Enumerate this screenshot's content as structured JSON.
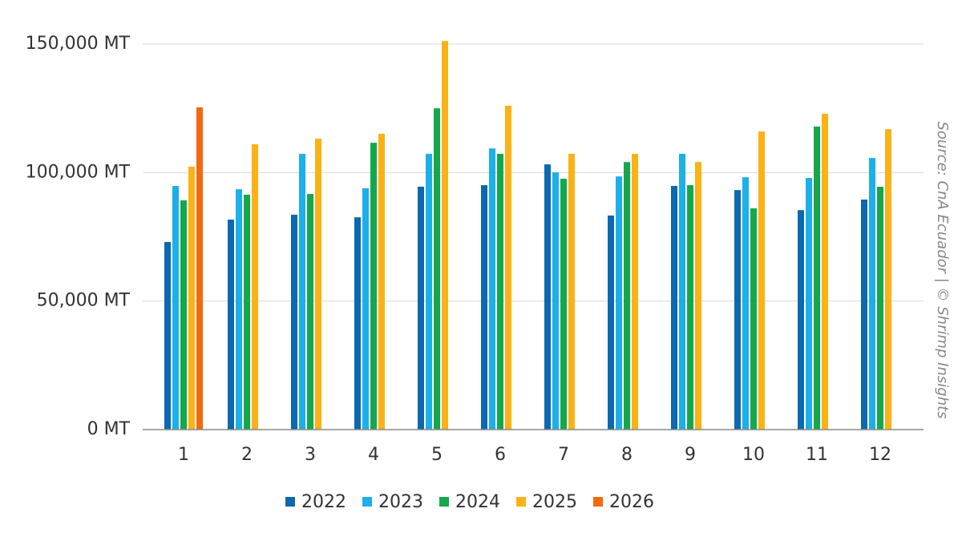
{
  "chart_data": {
    "type": "bar",
    "source": "Source: CnA Ecuador | © Shrimp Insights",
    "categories": [
      "1",
      "2",
      "3",
      "4",
      "5",
      "6",
      "7",
      "8",
      "9",
      "10",
      "11",
      "12"
    ],
    "series": [
      {
        "name": "2022",
        "color": "#0b68b1",
        "values": [
          73000,
          81700,
          83600,
          82600,
          94500,
          95100,
          103200,
          83300,
          94800,
          93200,
          85400,
          89500
        ]
      },
      {
        "name": "2023",
        "color": "#1bb0e8",
        "values": [
          94800,
          93500,
          107300,
          93900,
          107300,
          109400,
          100100,
          98500,
          107300,
          98200,
          97900,
          105700
        ]
      },
      {
        "name": "2024",
        "color": "#14a84b",
        "values": [
          89200,
          91400,
          91700,
          111600,
          125000,
          107300,
          97600,
          104100,
          95100,
          86100,
          117900,
          94500
        ]
      },
      {
        "name": "2025",
        "color": "#fbb216",
        "values": [
          102300,
          111000,
          113200,
          115100,
          151200,
          126000,
          107300,
          107300,
          104100,
          116000,
          122900,
          116900
        ]
      },
      {
        "name": "2026",
        "color": "#f26a10",
        "values": [
          125400,
          null,
          null,
          null,
          null,
          null,
          null,
          null,
          null,
          null,
          null,
          null
        ]
      }
    ],
    "ylim": [
      0,
      150000
    ],
    "yticks": [
      {
        "value": 0,
        "label": "0 MT"
      },
      {
        "value": 50000,
        "label": "50,000 MT"
      },
      {
        "value": 100000,
        "label": "100,000 MT"
      },
      {
        "value": 150000,
        "label": "150,000 MT"
      }
    ],
    "grid": true,
    "legend": "bottom"
  }
}
